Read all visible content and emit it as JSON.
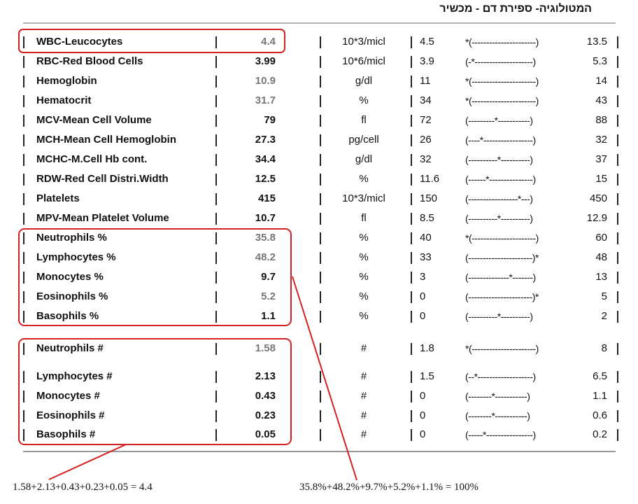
{
  "header": {
    "title": "המטולוגיה- ספירת דם - מכשיר"
  },
  "table": {
    "rows": [
      {
        "name": "WBC-Leucocytes",
        "value": "4.4",
        "unit": "10*3/micl",
        "low": "4.5",
        "range": "*(----------------------)",
        "high": "13.5"
      },
      {
        "name": "RBC-Red Blood Cells",
        "value": "3.99",
        "unit": "10*6/micl",
        "low": "3.9",
        "range": "(-*--------------------)",
        "high": "5.3"
      },
      {
        "name": "Hemoglobin",
        "value": "10.9",
        "unit": "g/dl",
        "low": "11",
        "range": "*(----------------------)",
        "high": "14"
      },
      {
        "name": "Hematocrit",
        "value": "31.7",
        "unit": "%",
        "low": "34",
        "range": "*(----------------------)",
        "high": "43"
      },
      {
        "name": "MCV-Mean Cell Volume",
        "value": "79",
        "unit": "fl",
        "low": "72",
        "range": "(---------*-----------)",
        "high": "88"
      },
      {
        "name": "MCH-Mean Cell Hemoglobin",
        "value": "27.3",
        "unit": "pg/cell",
        "low": "26",
        "range": "(----*-----------------)",
        "high": "32"
      },
      {
        "name": "MCHC-M.Cell Hb cont.",
        "value": "34.4",
        "unit": "g/dl",
        "low": "32",
        "range": "(----------*----------)",
        "high": "37"
      },
      {
        "name": "RDW-Red Cell Distri.Width",
        "value": "12.5",
        "unit": "%",
        "low": "11.6",
        "range": "(------*---------------)",
        "high": "15"
      },
      {
        "name": "Platelets",
        "value": "415",
        "unit": "10*3/micl",
        "low": "150",
        "range": "(-----------------*---)",
        "high": "450"
      },
      {
        "name": "MPV-Mean Platelet Volume",
        "value": "10.7",
        "unit": "fl",
        "low": "8.5",
        "range": "(----------*----------)",
        "high": "12.9"
      },
      {
        "name": "Neutrophils %",
        "value": "35.8",
        "unit": "%",
        "low": "40",
        "range": "*(----------------------)",
        "high": "60"
      },
      {
        "name": "Lymphocytes %",
        "value": "48.2",
        "unit": "%",
        "low": "33",
        "range": "(----------------------)*",
        "high": "48"
      },
      {
        "name": "Monocytes %",
        "value": "9.7",
        "unit": "%",
        "low": "3",
        "range": "(--------------*-------)",
        "high": "13"
      },
      {
        "name": "Eosinophils %",
        "value": "5.2",
        "unit": "%",
        "low": "0",
        "range": "(----------------------)*",
        "high": "5"
      },
      {
        "name": "Basophils %",
        "value": "1.1",
        "unit": "%",
        "low": "0",
        "range": "(----------*----------)",
        "high": "2"
      },
      {
        "name": "Neutrophils #",
        "value": "1.58",
        "unit": "#",
        "low": "1.8",
        "range": "*(----------------------)",
        "high": "8"
      },
      {
        "name": "Lymphocytes #",
        "value": "2.13",
        "unit": "#",
        "low": "1.5",
        "range": "(--*-------------------)",
        "high": "6.5"
      },
      {
        "name": "Monocytes #",
        "value": "0.43",
        "unit": "#",
        "low": "0",
        "range": "(--------*-----------)",
        "high": "1.1"
      },
      {
        "name": "Eosinophils #",
        "value": "0.23",
        "unit": "#",
        "low": "0",
        "range": "(--------*-----------)",
        "high": "0.6"
      },
      {
        "name": "Basophils #",
        "value": "0.05",
        "unit": "#",
        "low": "0",
        "range": "(-----*----------------)",
        "high": "0.2"
      }
    ]
  },
  "annotations": {
    "absolute_sum": "1.58+2.13+0.43+0.23+0.05 = 4.4",
    "percent_sum": "35.8%+48.2%+9.7%+5.2%+1.1% = 100%"
  }
}
